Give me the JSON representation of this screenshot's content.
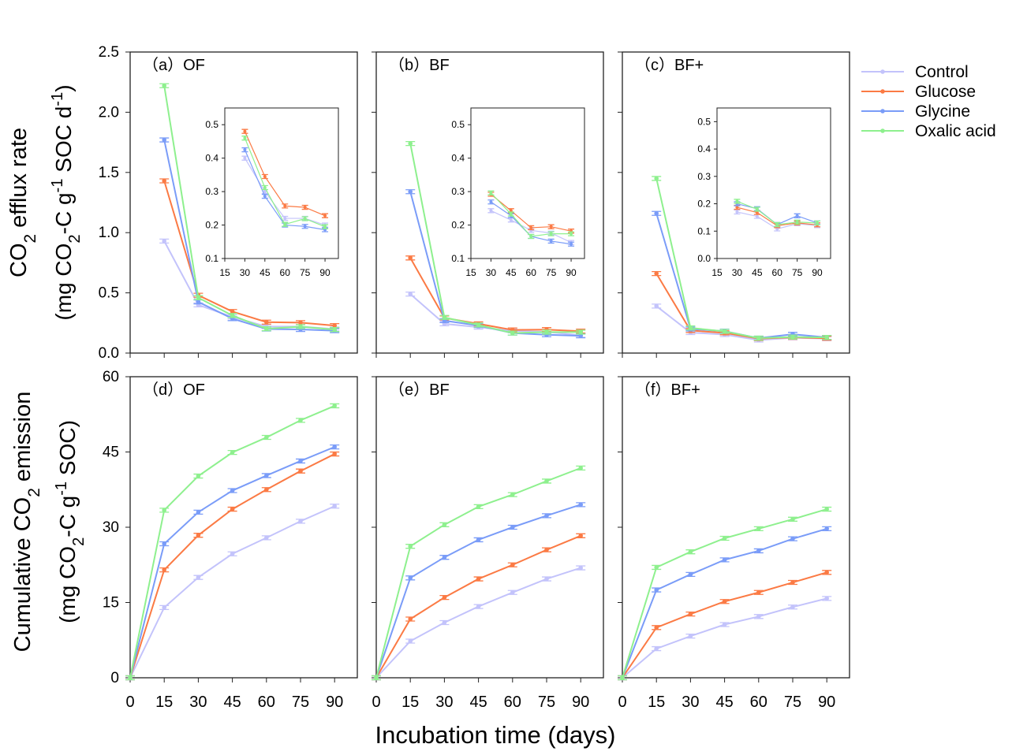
{
  "colors": {
    "Control": "#c3c3fb",
    "Glucose": "#fb7a44",
    "Glycine": "#7a9cf8",
    "Oxalic acid": "#8ef08e"
  },
  "legend": [
    "Control",
    "Glucose",
    "Glycine",
    "Oxalic acid"
  ],
  "y_label_top": {
    "line1": [
      {
        "t": "CO"
      },
      {
        "t": "2",
        "sub": true
      },
      {
        "t": " efflux rate"
      }
    ],
    "line2": [
      {
        "t": "(mg CO"
      },
      {
        "t": "2",
        "sub": true
      },
      {
        "t": "-C g"
      },
      {
        "t": "-1",
        "sup": true
      },
      {
        "t": " SOC d"
      },
      {
        "t": "-1",
        "sup": true
      },
      {
        "t": ")"
      }
    ]
  },
  "y_label_bottom": {
    "line1": [
      {
        "t": "Cumulative CO"
      },
      {
        "t": "2",
        "sub": true
      },
      {
        "t": " emission"
      }
    ],
    "line2": [
      {
        "t": "(mg CO"
      },
      {
        "t": "2",
        "sub": true
      },
      {
        "t": "-C g"
      },
      {
        "t": "-1",
        "sup": true
      },
      {
        "t": " SOC)"
      }
    ]
  },
  "x_label": "Incubation time (days)",
  "chart_data": [
    {
      "panel": "a",
      "type": "line",
      "title": "（a）OF",
      "x": [
        15,
        30,
        45,
        60,
        75,
        90
      ],
      "xlim": [
        0,
        100
      ],
      "ylim": [
        0,
        2.5
      ],
      "yticks": [
        "0.0",
        "0.5",
        "1.0",
        "1.5",
        "2.0",
        "2.5"
      ],
      "series": [
        {
          "name": "Control",
          "values": [
            0.93,
            0.4,
            0.3,
            0.22,
            0.22,
            0.2
          ]
        },
        {
          "name": "Glucose",
          "values": [
            1.43,
            0.48,
            0.345,
            0.257,
            0.253,
            0.228
          ]
        },
        {
          "name": "Glycine",
          "values": [
            1.77,
            0.425,
            0.286,
            0.2,
            0.196,
            0.186
          ]
        },
        {
          "name": "Oxalic acid",
          "values": [
            2.22,
            0.46,
            0.312,
            0.202,
            0.219,
            0.195
          ]
        }
      ],
      "inset": {
        "x": [
          30,
          45,
          60,
          75,
          90
        ],
        "xlim": [
          15,
          100
        ],
        "ylim": [
          0.1,
          0.55
        ],
        "xticks": [
          "15",
          "30",
          "45",
          "60",
          "75",
          "90"
        ],
        "yticks": [
          "0.1",
          "0.2",
          "0.3",
          "0.4",
          "0.5"
        ]
      }
    },
    {
      "panel": "b",
      "type": "line",
      "title": "（b）BF",
      "x": [
        15,
        30,
        45,
        60,
        75,
        90
      ],
      "xlim": [
        0,
        100
      ],
      "ylim": [
        0,
        2.5
      ],
      "series": [
        {
          "name": "Control",
          "values": [
            0.49,
            0.243,
            0.215,
            0.184,
            0.176,
            0.148
          ]
        },
        {
          "name": "Glucose",
          "values": [
            0.79,
            0.292,
            0.243,
            0.192,
            0.195,
            0.182
          ]
        },
        {
          "name": "Glycine",
          "values": [
            1.34,
            0.269,
            0.228,
            0.166,
            0.152,
            0.143
          ]
        },
        {
          "name": "Oxalic acid",
          "values": [
            1.74,
            0.296,
            0.233,
            0.166,
            0.174,
            0.174
          ]
        }
      ],
      "inset": {
        "x": [
          30,
          45,
          60,
          75,
          90
        ],
        "xlim": [
          15,
          100
        ],
        "ylim": [
          0.1,
          0.55
        ],
        "xticks": [
          "15",
          "30",
          "45",
          "60",
          "75",
          "90"
        ],
        "yticks": [
          "0.1",
          "0.2",
          "0.3",
          "0.4",
          "0.5"
        ]
      }
    },
    {
      "panel": "c",
      "type": "line",
      "title": "（c）BF+",
      "x": [
        15,
        30,
        45,
        60,
        75,
        90
      ],
      "xlim": [
        0,
        100
      ],
      "ylim": [
        0,
        2.5
      ],
      "series": [
        {
          "name": "Control",
          "values": [
            0.39,
            0.17,
            0.154,
            0.108,
            0.127,
            0.12
          ]
        },
        {
          "name": "Glucose",
          "values": [
            0.66,
            0.187,
            0.168,
            0.12,
            0.13,
            0.123
          ]
        },
        {
          "name": "Glycine",
          "values": [
            1.16,
            0.2,
            0.182,
            0.124,
            0.156,
            0.13
          ]
        },
        {
          "name": "Oxalic acid",
          "values": [
            1.45,
            0.209,
            0.18,
            0.124,
            0.133,
            0.13
          ]
        }
      ],
      "inset": {
        "x": [
          30,
          45,
          60,
          75,
          90
        ],
        "xlim": [
          15,
          100
        ],
        "ylim": [
          0,
          0.55
        ],
        "xticks": [
          "15",
          "30",
          "45",
          "60",
          "75",
          "90"
        ],
        "yticks": [
          "0.0",
          "0.1",
          "0.2",
          "0.3",
          "0.4",
          "0.5"
        ]
      }
    },
    {
      "panel": "d",
      "type": "line",
      "title": "（d）OF",
      "x": [
        0,
        15,
        30,
        45,
        60,
        75,
        90
      ],
      "xlim": [
        0,
        100
      ],
      "ylim": [
        0,
        60
      ],
      "yticks": [
        "0",
        "15",
        "30",
        "45",
        "60"
      ],
      "xticks": [
        "0",
        "15",
        "30",
        "45",
        "60",
        "75",
        "90"
      ],
      "series": [
        {
          "name": "Control",
          "values": [
            0,
            14.0,
            20.0,
            24.7,
            27.9,
            31.2,
            34.2
          ]
        },
        {
          "name": "Glucose",
          "values": [
            0,
            21.5,
            28.4,
            33.6,
            37.5,
            41.2,
            44.6
          ]
        },
        {
          "name": "Glycine",
          "values": [
            0,
            26.7,
            33.0,
            37.3,
            40.3,
            43.2,
            46.0
          ]
        },
        {
          "name": "Oxalic acid",
          "values": [
            0,
            33.4,
            40.2,
            44.9,
            47.9,
            51.3,
            54.2
          ]
        }
      ]
    },
    {
      "panel": "e",
      "type": "line",
      "title": "（e）BF",
      "x": [
        0,
        15,
        30,
        45,
        60,
        75,
        90
      ],
      "xlim": [
        0,
        100
      ],
      "ylim": [
        0,
        60
      ],
      "xticks": [
        "0",
        "15",
        "30",
        "45",
        "60",
        "75",
        "90"
      ],
      "series": [
        {
          "name": "Control",
          "values": [
            0,
            7.3,
            11.0,
            14.2,
            17.0,
            19.7,
            21.9
          ]
        },
        {
          "name": "Glucose",
          "values": [
            0,
            11.7,
            16.0,
            19.7,
            22.5,
            25.5,
            28.3
          ]
        },
        {
          "name": "Glycine",
          "values": [
            0,
            19.9,
            24.0,
            27.5,
            30.0,
            32.3,
            34.5
          ]
        },
        {
          "name": "Oxalic acid",
          "values": [
            0,
            26.2,
            30.5,
            34.1,
            36.5,
            39.2,
            41.8
          ]
        }
      ]
    },
    {
      "panel": "f",
      "type": "line",
      "title": "（f）BF+",
      "x": [
        0,
        15,
        30,
        45,
        60,
        75,
        90
      ],
      "xlim": [
        0,
        100
      ],
      "ylim": [
        0,
        60
      ],
      "xticks": [
        "0",
        "15",
        "30",
        "45",
        "60",
        "75",
        "90"
      ],
      "series": [
        {
          "name": "Control",
          "values": [
            0,
            5.8,
            8.3,
            10.6,
            12.2,
            14.1,
            15.8
          ]
        },
        {
          "name": "Glucose",
          "values": [
            0,
            10.0,
            12.7,
            15.2,
            17.0,
            19.0,
            21.0
          ]
        },
        {
          "name": "Glycine",
          "values": [
            0,
            17.5,
            20.6,
            23.5,
            25.3,
            27.7,
            29.7
          ]
        },
        {
          "name": "Oxalic acid",
          "values": [
            0,
            22.0,
            25.1,
            27.8,
            29.7,
            31.6,
            33.6
          ]
        }
      ]
    }
  ]
}
